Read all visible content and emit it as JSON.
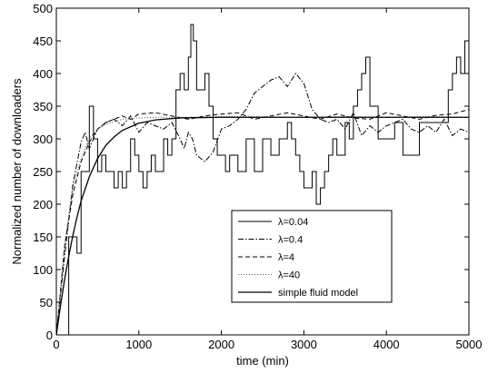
{
  "chart_data": {
    "type": "line",
    "title": "",
    "xlabel": "time (min)",
    "ylabel": "Normalized number of downloaders",
    "xlim": [
      0,
      5000
    ],
    "ylim": [
      0,
      500
    ],
    "xticks": [
      0,
      1000,
      2000,
      3000,
      4000,
      5000
    ],
    "yticks": [
      0,
      50,
      100,
      150,
      200,
      250,
      300,
      350,
      400,
      450,
      500
    ],
    "grid": false,
    "legend_position": "lower-right",
    "series": [
      {
        "name": "λ=0.04",
        "style": "solid-steps",
        "color": "#000000",
        "x": [
          0,
          150,
          250,
          300,
          400,
          450,
          500,
          550,
          600,
          700,
          750,
          800,
          850,
          900,
          950,
          1000,
          1050,
          1100,
          1150,
          1200,
          1250,
          1300,
          1350,
          1400,
          1450,
          1500,
          1550,
          1600,
          1630,
          1660,
          1700,
          1750,
          1800,
          1850,
          1900,
          1950,
          2000,
          2050,
          2100,
          2200,
          2300,
          2400,
          2500,
          2600,
          2700,
          2800,
          2850,
          2900,
          2950,
          3000,
          3050,
          3100,
          3150,
          3200,
          3250,
          3300,
          3350,
          3400,
          3500,
          3550,
          3600,
          3650,
          3700,
          3750,
          3800,
          3900,
          4000,
          4100,
          4200,
          4300,
          4400,
          4500,
          4600,
          4700,
          4750,
          4800,
          4850,
          4900,
          4950,
          5000
        ],
        "y": [
          0,
          150,
          125,
          250,
          350,
          300,
          250,
          275,
          250,
          225,
          250,
          225,
          250,
          300,
          275,
          250,
          225,
          250,
          275,
          250,
          250,
          300,
          275,
          300,
          375,
          400,
          375,
          425,
          475,
          450,
          375,
          375,
          400,
          350,
          300,
          275,
          275,
          250,
          275,
          250,
          300,
          250,
          300,
          275,
          300,
          325,
          300,
          275,
          250,
          225,
          225,
          250,
          200,
          225,
          250,
          275,
          300,
          275,
          325,
          300,
          350,
          375,
          400,
          425,
          350,
          300,
          300,
          325,
          275,
          275,
          325,
          325,
          325,
          325,
          375,
          400,
          425,
          400,
          450,
          300
        ]
      },
      {
        "name": "λ=0.4",
        "style": "dash-dot",
        "color": "#000000",
        "x": [
          0,
          100,
          200,
          300,
          350,
          400,
          500,
          600,
          700,
          800,
          900,
          1000,
          1100,
          1200,
          1300,
          1400,
          1500,
          1550,
          1600,
          1650,
          1700,
          1800,
          1900,
          2000,
          2100,
          2200,
          2300,
          2400,
          2500,
          2600,
          2700,
          2800,
          2900,
          3000,
          3100,
          3200,
          3300,
          3400,
          3500,
          3600,
          3700,
          3800,
          3900,
          4000,
          4100,
          4200,
          4300,
          4400,
          4500,
          4600,
          4700,
          4800,
          4900,
          5000
        ],
        "y": [
          0,
          120,
          230,
          295,
          310,
          285,
          315,
          325,
          330,
          320,
          335,
          310,
          325,
          320,
          315,
          325,
          300,
          285,
          310,
          300,
          275,
          265,
          280,
          315,
          320,
          330,
          345,
          370,
          380,
          390,
          395,
          380,
          400,
          385,
          345,
          330,
          325,
          330,
          315,
          340,
          305,
          320,
          310,
          320,
          325,
          330,
          315,
          310,
          320,
          310,
          330,
          305,
          315,
          310
        ]
      },
      {
        "name": "λ=4",
        "style": "dashed",
        "color": "#000000",
        "x": [
          0,
          100,
          200,
          300,
          400,
          500,
          600,
          700,
          800,
          900,
          1000,
          1200,
          1400,
          1600,
          1800,
          2000,
          2200,
          2400,
          2600,
          2800,
          3000,
          3200,
          3400,
          3600,
          3800,
          4000,
          4200,
          4400,
          4600,
          4800,
          5000
        ],
        "y": [
          0,
          135,
          215,
          265,
          295,
          315,
          325,
          330,
          335,
          330,
          338,
          340,
          335,
          330,
          335,
          338,
          340,
          330,
          335,
          340,
          335,
          330,
          338,
          332,
          330,
          340,
          335,
          330,
          336,
          338,
          345
        ]
      },
      {
        "name": "λ=40",
        "style": "dotted",
        "color": "#666666",
        "x": [
          0,
          100,
          200,
          300,
          400,
          500,
          600,
          800,
          1000,
          1200,
          1500,
          2000,
          2500,
          3000,
          3500,
          4000,
          4500,
          5000
        ],
        "y": [
          0,
          140,
          225,
          270,
          300,
          315,
          322,
          330,
          332,
          333,
          333,
          334,
          334,
          333,
          334,
          333,
          334,
          333
        ]
      },
      {
        "name": "simple fluid model",
        "style": "solid-smooth",
        "color": "#000000",
        "x": [
          0,
          50,
          100,
          150,
          200,
          250,
          300,
          400,
          500,
          600,
          700,
          800,
          1000,
          1200,
          1500,
          2000,
          2500,
          3000,
          3500,
          4000,
          4500,
          5000
        ],
        "y": [
          0,
          44,
          85,
          120,
          152,
          180,
          205,
          242,
          270,
          290,
          303,
          313,
          324,
          329,
          332,
          333,
          333,
          333,
          333,
          333,
          333,
          333
        ]
      }
    ]
  }
}
